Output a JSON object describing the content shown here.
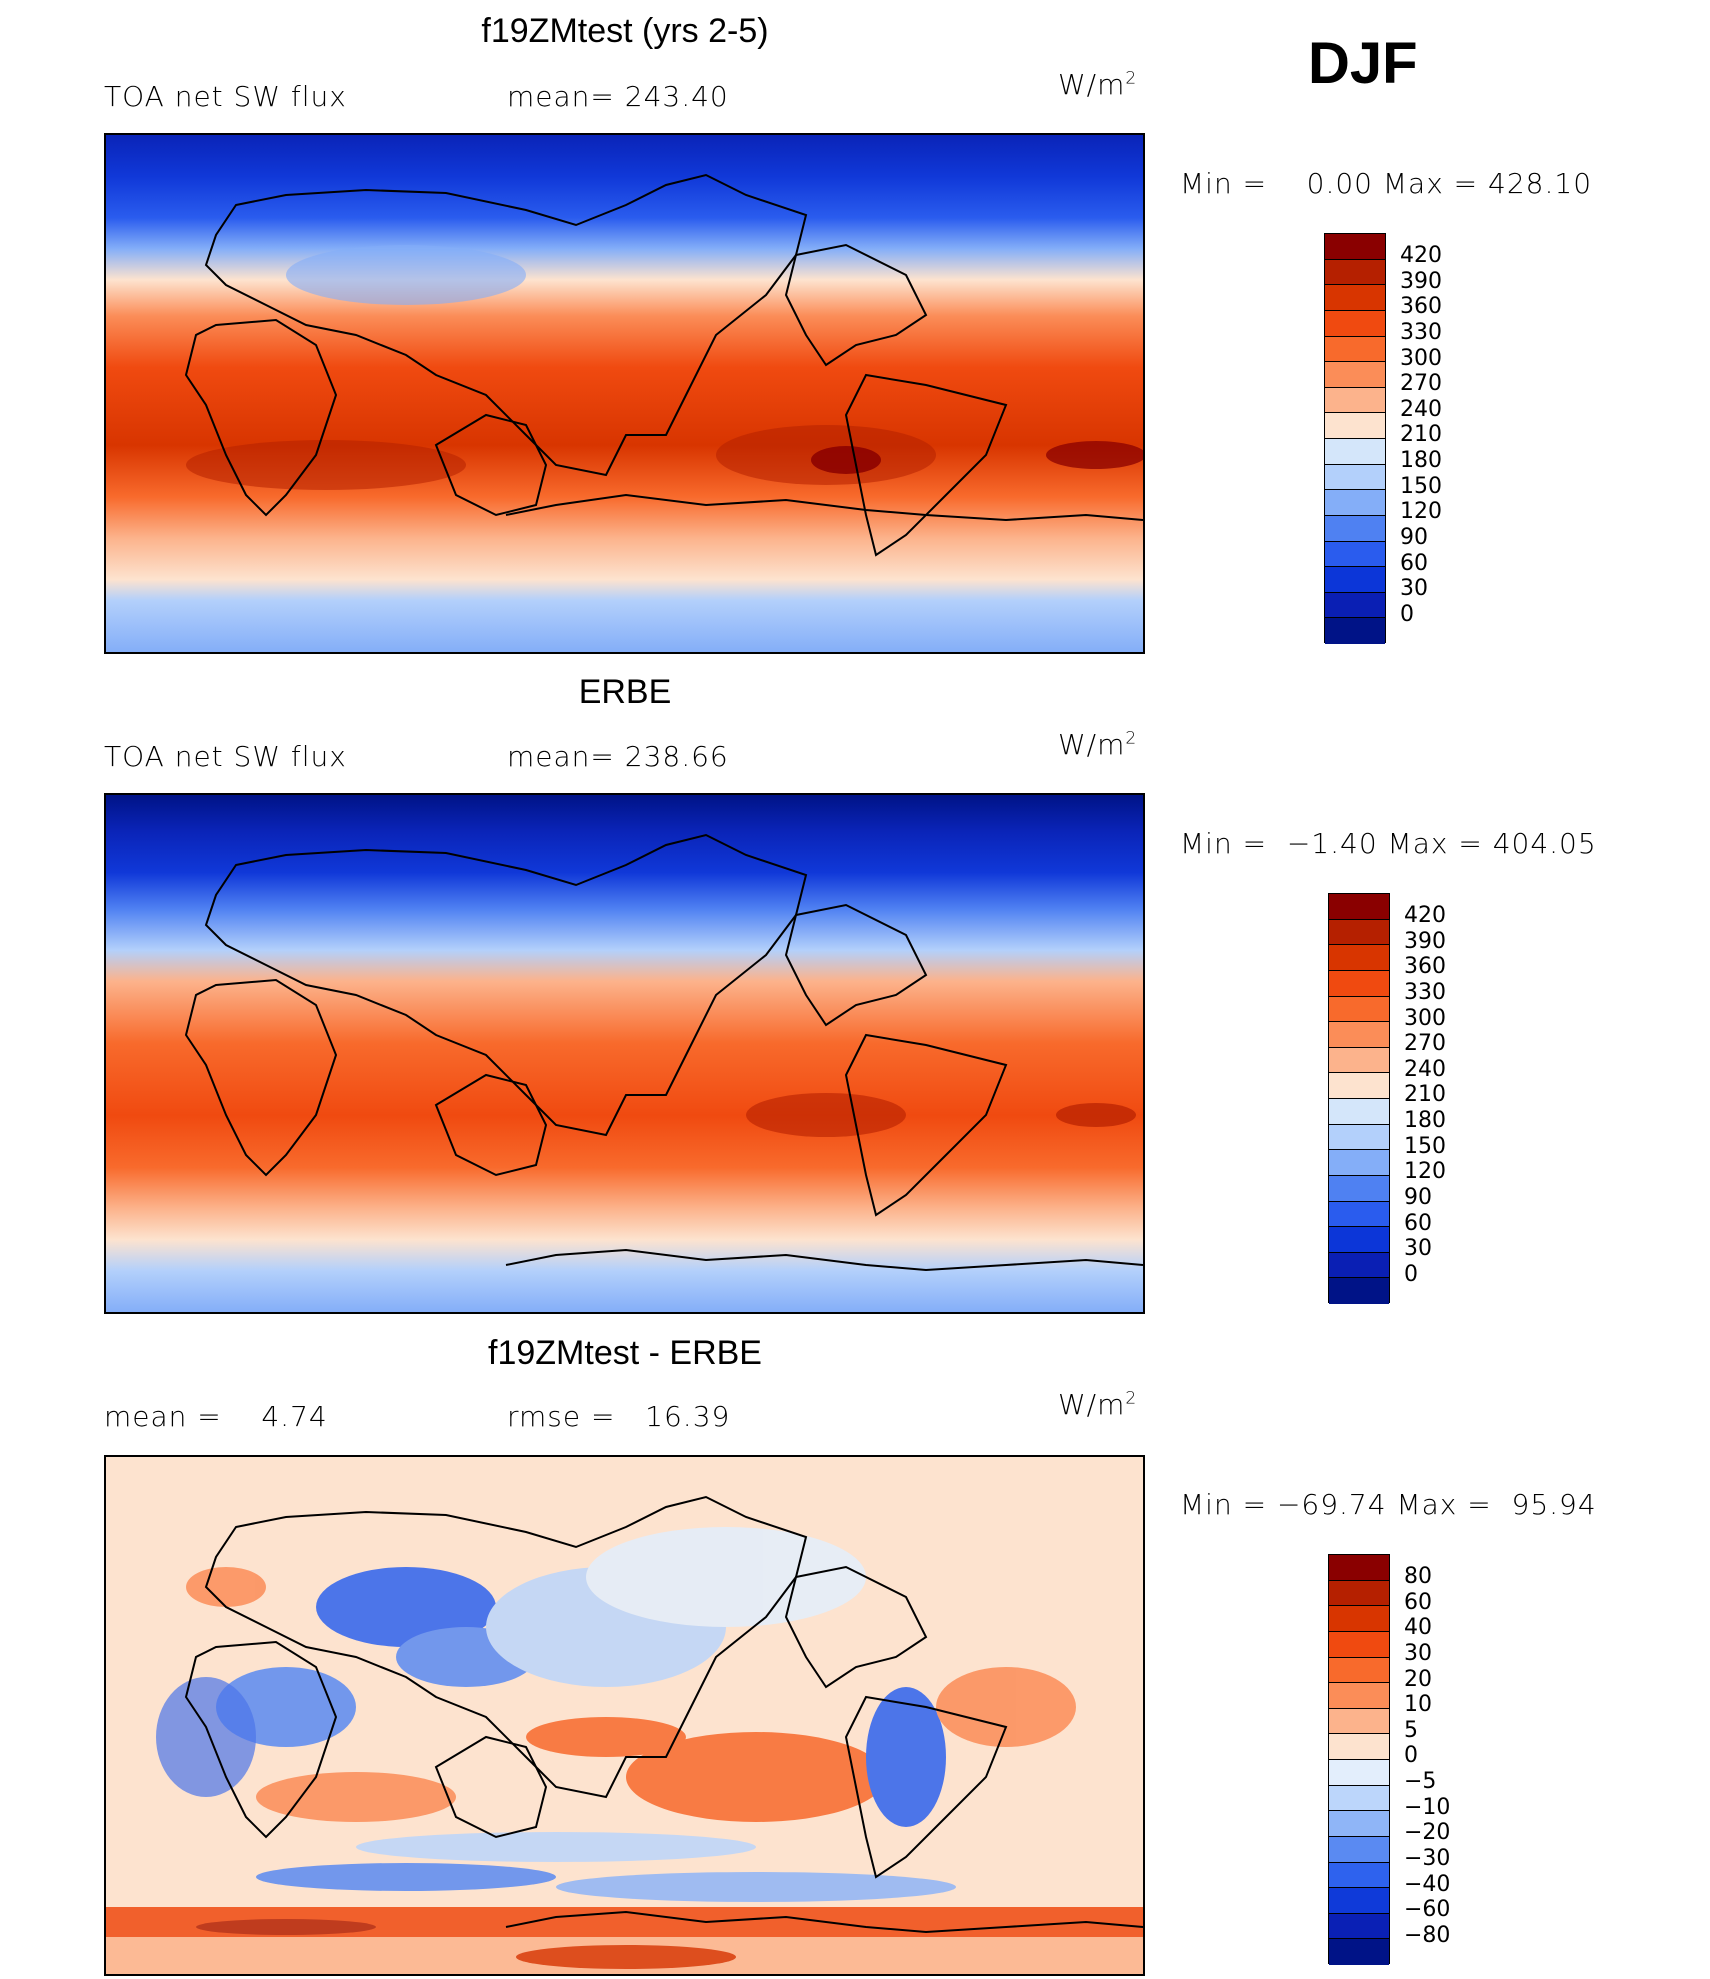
{
  "season": "DJF",
  "panels": [
    {
      "title": "f19ZMtest (yrs 2-5)",
      "left_label": "TOA net SW flux",
      "mid_label": "mean= 243.40",
      "unit": "W/m",
      "unit_sup": "2",
      "minmax": "Min =    0.00 Max = 428.10",
      "colorbar": {
        "labels": [
          "420",
          "390",
          "360",
          "330",
          "300",
          "270",
          "240",
          "210",
          "180",
          "150",
          "120",
          "90",
          "60",
          "30",
          "0"
        ],
        "colors": [
          "#8a0000",
          "#b52000",
          "#d83500",
          "#f04a10",
          "#f86a2c",
          "#fb8d58",
          "#fcb38c",
          "#fde3cf",
          "#d4e6fa",
          "#b3d0fb",
          "#84aef8",
          "#4f81f2",
          "#2a5cee",
          "#0c36d8",
          "#0a1fb4",
          "#001387"
        ]
      }
    },
    {
      "title": "ERBE",
      "left_label": "TOA net SW flux",
      "mid_label": "mean= 238.66",
      "unit": "W/m",
      "unit_sup": "2",
      "minmax": "Min =  −1.40 Max = 404.05",
      "colorbar": {
        "labels": [
          "420",
          "390",
          "360",
          "330",
          "300",
          "270",
          "240",
          "210",
          "180",
          "150",
          "120",
          "90",
          "60",
          "30",
          "0"
        ],
        "colors": [
          "#8a0000",
          "#b52000",
          "#d83500",
          "#f04a10",
          "#f86a2c",
          "#fb8d58",
          "#fcb38c",
          "#fde3cf",
          "#d4e6fa",
          "#b3d0fb",
          "#84aef8",
          "#4f81f2",
          "#2a5cee",
          "#0c36d8",
          "#0a1fb4",
          "#001387"
        ]
      }
    },
    {
      "title": "f19ZMtest - ERBE",
      "left_label": "mean =    4.74",
      "mid_label": "rmse =   16.39",
      "unit": "W/m",
      "unit_sup": "2",
      "minmax": "Min = −69.74 Max =  95.94",
      "colorbar": {
        "labels": [
          "80",
          "60",
          "40",
          "30",
          "20",
          "10",
          "5",
          "0",
          "−5",
          "−10",
          "−20",
          "−30",
          "−40",
          "−60",
          "−80"
        ],
        "colors": [
          "#8a0000",
          "#b52000",
          "#d83500",
          "#f04a10",
          "#f86a2c",
          "#fb8d58",
          "#fcb38c",
          "#fde3cf",
          "#e3eefc",
          "#bcd6fb",
          "#8fb5f7",
          "#5a8af2",
          "#2e62ee",
          "#0f3ad9",
          "#0a20b5",
          "#001387"
        ]
      }
    }
  ]
}
